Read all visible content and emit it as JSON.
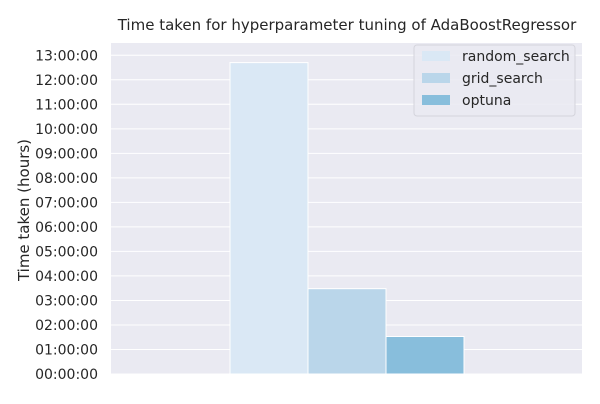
{
  "chart_data": {
    "type": "bar",
    "title": "Time taken for hyperparameter tuning of AdaBoostRegressor",
    "xlabel": "",
    "ylabel": "Time taken (hours)",
    "ylim": [
      0,
      13.5
    ],
    "yticks": [
      0,
      1,
      2,
      3,
      4,
      5,
      6,
      7,
      8,
      9,
      10,
      11,
      12,
      13
    ],
    "ytick_labels": [
      "00:00:00",
      "01:00:00",
      "02:00:00",
      "03:00:00",
      "04:00:00",
      "05:00:00",
      "06:00:00",
      "07:00:00",
      "08:00:00",
      "09:00:00",
      "10:00:00",
      "11:00:00",
      "12:00:00",
      "13:00:00"
    ],
    "grid": true,
    "legend_position": "top-right",
    "series": [
      {
        "name": "random_search",
        "value": 12.7,
        "color": "#dae8f5"
      },
      {
        "name": "grid_search",
        "value": 3.48,
        "color": "#bad6ea"
      },
      {
        "name": "optuna",
        "value": 1.53,
        "color": "#88bedc"
      }
    ],
    "background_color": "#eaeaf2",
    "grid_color": "#ffffff"
  }
}
